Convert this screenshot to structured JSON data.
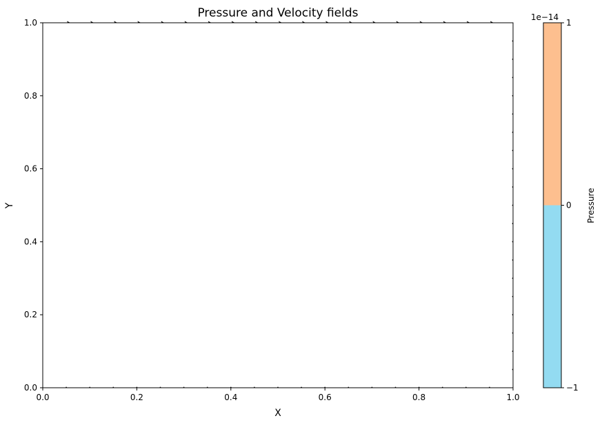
{
  "chart_data": {
    "type": "quiver",
    "title": "Pressure and Velocity fields",
    "xlabel": "X",
    "ylabel": "Y",
    "xlim": [
      0.0,
      1.0
    ],
    "ylim": [
      0.0,
      1.0
    ],
    "xticks": [
      0.0,
      0.2,
      0.4,
      0.6,
      0.8,
      1.0
    ],
    "yticks": [
      0.0,
      0.2,
      0.4,
      0.6,
      0.8,
      1.0
    ],
    "xtick_labels": [
      "0.0",
      "0.2",
      "0.4",
      "0.6",
      "0.8",
      "1.0"
    ],
    "ytick_labels": [
      "0.0",
      "0.2",
      "0.4",
      "0.6",
      "0.8",
      "1.0"
    ],
    "grid": false,
    "pressure_field": {
      "levels": [
        -1,
        0,
        1
      ],
      "level_colors": [
        "#93dbf1",
        "#fdbf8f"
      ]
    },
    "velocity_field": {
      "top_lid_arrows_x": [
        0.05,
        0.1,
        0.15,
        0.2,
        0.25,
        0.3,
        0.35,
        0.4,
        0.45,
        0.5,
        0.55,
        0.6,
        0.65,
        0.7,
        0.75,
        0.8,
        0.85,
        0.9,
        0.95
      ],
      "top_lid_y": 1.0,
      "top_lid_u": 1.0,
      "boundary_marker_x": [
        0.05,
        0.1,
        0.15,
        0.2,
        0.25,
        0.3,
        0.35,
        0.4,
        0.45,
        0.5,
        0.55,
        0.6,
        0.65,
        0.7,
        0.75,
        0.8,
        0.85,
        0.9,
        0.95
      ],
      "boundary_marker_y": [
        0.05,
        0.1,
        0.15,
        0.2,
        0.25,
        0.3,
        0.35,
        0.4,
        0.45,
        0.5,
        0.55,
        0.6,
        0.65,
        0.7,
        0.75,
        0.8,
        0.85,
        0.9,
        0.95
      ]
    },
    "colorbar": {
      "label": "Pressure",
      "offset_text": "1e−14",
      "ticks": [
        -1,
        0,
        1
      ],
      "tick_labels": [
        "−1",
        "0",
        "1"
      ]
    }
  }
}
